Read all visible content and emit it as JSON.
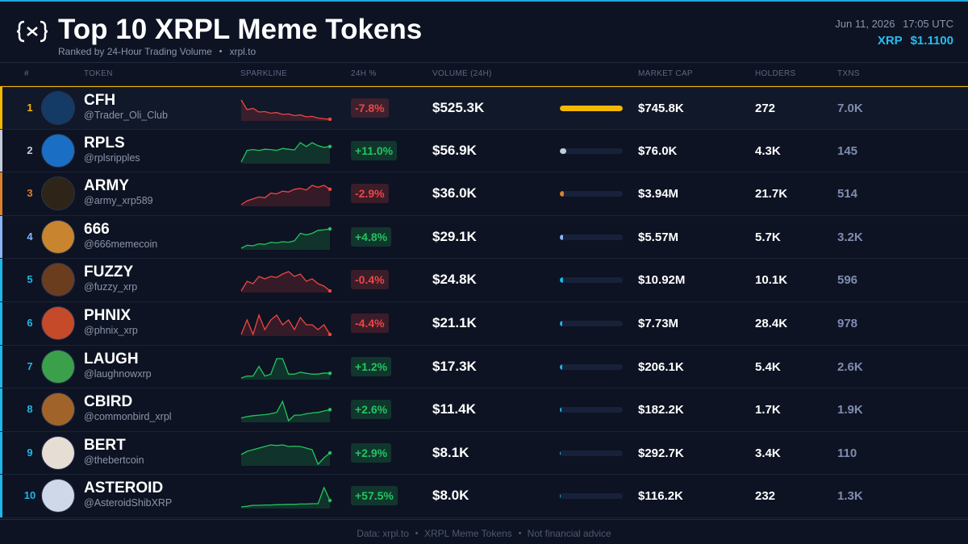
{
  "header": {
    "title": "Top 10 XRPL Meme Tokens",
    "subtitle": "Ranked by 24-Hour Trading Volume",
    "site": "xrpl.to",
    "date": "Jun 11, 2026",
    "time": "17:05 UTC",
    "price_label": "XRP",
    "price": "$1.1100"
  },
  "columns": [
    "#",
    "TOKEN",
    "SPARKLINE",
    "24H %",
    "VOLUME (24H)",
    "MARKET CAP",
    "HOLDERS",
    "TXNS"
  ],
  "rows": [
    {
      "rank": 1,
      "name": "CFH",
      "handle": "@Trader_Oli_Club",
      "change": "-7.8%",
      "trend_color": "#ef4444",
      "volume": {
        "value": 525300,
        "label": "$525.3K"
      },
      "market_cap": "$745.8K",
      "holders": "272",
      "txns": "7.0K",
      "accent": "#f5b800",
      "avatar_color": "#143a66",
      "sparkline": [
        10,
        6,
        6.5,
        5,
        5.2,
        4.5,
        4.8,
        4,
        4.2,
        3.5,
        3.8,
        3,
        3.2,
        2.5,
        2.2,
        2
      ]
    },
    {
      "rank": 2,
      "name": "RPLS",
      "handle": "@rplsripples",
      "change": "+11.0%",
      "trend_color": "#22c55e",
      "volume": {
        "value": 56900,
        "label": "$56.9K"
      },
      "market_cap": "$76.0K",
      "holders": "4.3K",
      "txns": "145",
      "accent": "#c3cad8",
      "avatar_color": "#1a6fc4",
      "sparkline": [
        1,
        4,
        4.2,
        4,
        4.3,
        4.2,
        4,
        4.5,
        4.3,
        4.1,
        6,
        5,
        6,
        5.2,
        4.8,
        5
      ]
    },
    {
      "rank": 3,
      "name": "ARMY",
      "handle": "@army_xrp589",
      "change": "-2.9%",
      "trend_color": "#ef4444",
      "volume": {
        "value": 36000,
        "label": "$36.0K"
      },
      "market_cap": "$3.94M",
      "holders": "21.7K",
      "txns": "514",
      "accent": "#d9822b",
      "avatar_color": "#2e2418",
      "sparkline": [
        2,
        3,
        3.5,
        4,
        3.8,
        5,
        4.8,
        5.5,
        5.3,
        6,
        6.2,
        5.8,
        7,
        6.5,
        7,
        6
      ]
    },
    {
      "rank": 4,
      "name": "666",
      "handle": "@666memecoin",
      "change": "+4.8%",
      "trend_color": "#22c55e",
      "volume": {
        "value": 29100,
        "label": "$29.1K"
      },
      "market_cap": "$5.57M",
      "holders": "5.7K",
      "txns": "3.2K",
      "accent": "#8ab4f8",
      "avatar_color": "#c9842f",
      "sparkline": [
        1,
        2,
        1.8,
        2.5,
        2.3,
        3,
        2.8,
        3.2,
        3,
        3.5,
        6,
        5.5,
        6,
        7,
        7.2,
        7.5
      ]
    },
    {
      "rank": 5,
      "name": "FUZZY",
      "handle": "@fuzzy_xrp",
      "change": "-0.4%",
      "trend_color": "#ef4444",
      "volume": {
        "value": 24800,
        "label": "$24.8K"
      },
      "market_cap": "$10.92M",
      "holders": "10.1K",
      "txns": "596",
      "accent": "#1fb6e8",
      "avatar_color": "#6b3d1f",
      "sparkline": [
        3,
        5,
        4.5,
        6,
        5.5,
        6,
        5.8,
        6.5,
        7,
        6,
        6.5,
        5,
        5.5,
        4.5,
        4,
        3
      ]
    },
    {
      "rank": 6,
      "name": "PHNIX",
      "handle": "@phnix_xrp",
      "change": "-4.4%",
      "trend_color": "#ef4444",
      "volume": {
        "value": 21100,
        "label": "$21.1K"
      },
      "market_cap": "$7.73M",
      "holders": "28.4K",
      "txns": "978",
      "accent": "#1fb6e8",
      "avatar_color": "#c44a2a",
      "sparkline": [
        3,
        6,
        3,
        7,
        4,
        6,
        7,
        5,
        6,
        4,
        6.5,
        5,
        5,
        4,
        5,
        3
      ]
    },
    {
      "rank": 7,
      "name": "LAUGH",
      "handle": "@laughnowxrp",
      "change": "+1.2%",
      "trend_color": "#22c55e",
      "volume": {
        "value": 17300,
        "label": "$17.3K"
      },
      "market_cap": "$206.1K",
      "holders": "5.4K",
      "txns": "2.6K",
      "accent": "#1fb6e8",
      "avatar_color": "#3aa04a",
      "sparkline": [
        1,
        1.5,
        1.5,
        4,
        1.5,
        2,
        6,
        6,
        2,
        2,
        2.5,
        2.2,
        2,
        2,
        2.3,
        2.2
      ]
    },
    {
      "rank": 8,
      "name": "CBIRD",
      "handle": "@commonbird_xrpl",
      "change": "+2.6%",
      "trend_color": "#22c55e",
      "volume": {
        "value": 11400,
        "label": "$11.4K"
      },
      "market_cap": "$182.2K",
      "holders": "1.7K",
      "txns": "1.9K",
      "accent": "#1fb6e8",
      "avatar_color": "#a0642a",
      "sparkline": [
        2,
        2.5,
        2.8,
        3,
        3.2,
        3.5,
        4,
        8,
        1,
        3,
        3,
        3.5,
        3.8,
        4,
        4.5,
        5
      ]
    },
    {
      "rank": 9,
      "name": "BERT",
      "handle": "@thebertcoin",
      "change": "+2.9%",
      "trend_color": "#22c55e",
      "volume": {
        "value": 8100,
        "label": "$8.1K"
      },
      "market_cap": "$292.7K",
      "holders": "3.4K",
      "txns": "110",
      "accent": "#1fb6e8",
      "avatar_color": "#e6ded4",
      "sparkline": [
        4,
        5,
        5.5,
        6,
        6.5,
        7,
        6.8,
        7,
        6.5,
        6.6,
        6.5,
        6,
        5.5,
        1,
        3,
        4.5
      ]
    },
    {
      "rank": 10,
      "name": "ASTEROID",
      "handle": "@AsteroidShibXRP",
      "change": "+57.5%",
      "trend_color": "#22c55e",
      "volume": {
        "value": 8000,
        "label": "$8.0K"
      },
      "market_cap": "$116.2K",
      "holders": "232",
      "txns": "1.3K",
      "accent": "#1fb6e8",
      "avatar_color": "#cfd8e8",
      "sparkline": [
        1,
        1.2,
        1.5,
        1.5,
        1.6,
        1.6,
        1.7,
        1.7,
        1.8,
        1.8,
        1.9,
        1.9,
        2,
        2,
        7,
        3
      ]
    }
  ],
  "footer": [
    "Data: xrpl.to",
    "XRPL Meme Tokens",
    "Not financial advice"
  ]
}
